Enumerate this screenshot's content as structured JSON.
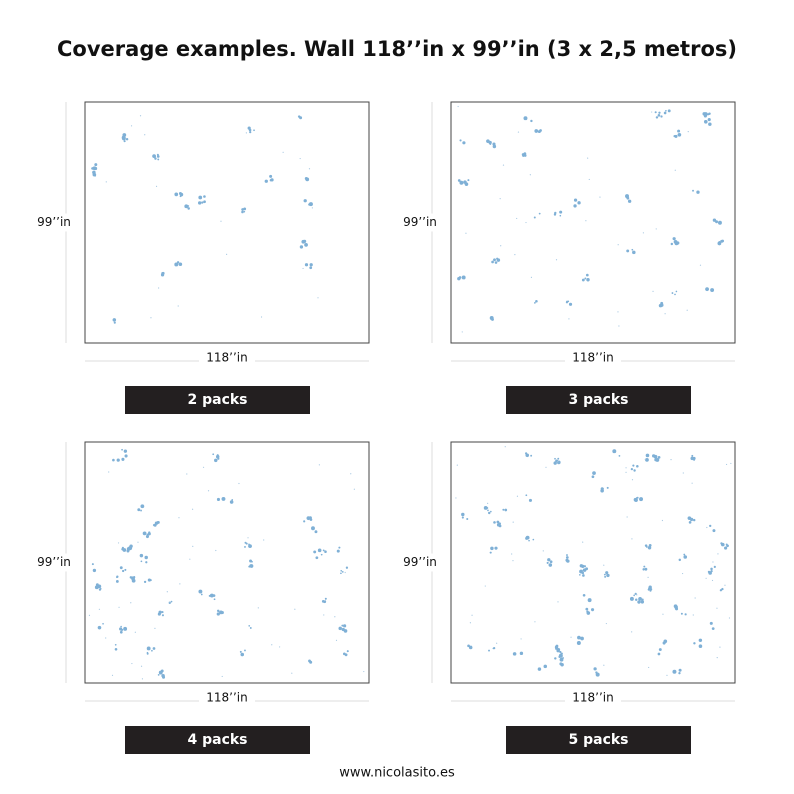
{
  "header": {
    "title": "Coverage examples. Wall 118’’in x 99’’in (3 x 2,5 metros)"
  },
  "panels": [
    {
      "height_label": "99’’in",
      "width_label": "118’’in",
      "button": "2 packs"
    },
    {
      "height_label": "99’’in",
      "width_label": "118’’in",
      "button": "3 packs"
    },
    {
      "height_label": "99’’in",
      "width_label": "118’’in",
      "button": "4 packs"
    },
    {
      "height_label": "99’’in",
      "width_label": "118’’in",
      "button": "5 packs"
    }
  ],
  "footer": {
    "url": "www.nicolasito.es"
  }
}
